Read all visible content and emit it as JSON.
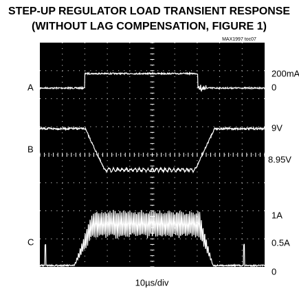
{
  "header": {
    "title_line_1": "STEP-UP REGULATOR LOAD TRANSIENT RESPONSE",
    "title_line_2": "(WITHOUT LAG COMPENSATION, FIGURE 1)",
    "reference": "MAX1997 toc07"
  },
  "traces": [
    {
      "label": "A",
      "upper_label": "200mA",
      "lower_label": "0"
    },
    {
      "label": "B",
      "upper_label": "9V",
      "lower_label": "8.95V"
    },
    {
      "label": "C",
      "upper_label": "1A",
      "middle_label": "0.5A",
      "lower_label": "0"
    }
  ],
  "x_scale": "10µs/div"
}
